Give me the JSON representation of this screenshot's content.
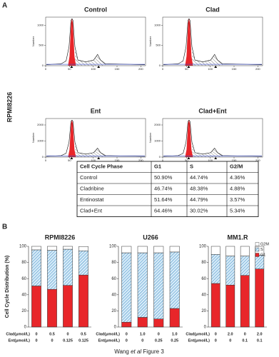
{
  "panel_a": {
    "label": "A",
    "row_label": "RPMI8226",
    "histograms": [
      {
        "title": "Control",
        "ylabel": "Number",
        "xlim": [
          0,
          210
        ],
        "ylim": [
          0,
          1200
        ],
        "xticks": [
          0,
          50,
          100,
          150,
          200
        ],
        "yticks": [
          0,
          500,
          1000
        ]
      },
      {
        "title": "Clad",
        "ylabel": "Number",
        "xlim": [
          0,
          210
        ],
        "ylim": [
          0,
          1200
        ],
        "xticks": [
          0,
          50,
          100,
          150,
          200
        ],
        "yticks": [
          0,
          500,
          1000
        ]
      },
      {
        "title": "Ent",
        "ylabel": "Number",
        "xlim": [
          0,
          210
        ],
        "ylim": [
          0,
          2400
        ],
        "xticks": [
          0,
          50,
          100,
          150,
          200
        ],
        "yticks": [
          0,
          1000,
          2000
        ]
      },
      {
        "title": "Clad+Ent",
        "ylabel": "Number",
        "xlim": [
          0,
          210
        ],
        "ylim": [
          0,
          2400
        ],
        "xticks": [
          0,
          50,
          100,
          150,
          200
        ],
        "yticks": [
          0,
          1000,
          2000
        ]
      }
    ],
    "table": {
      "header": [
        "Cell Cycle Phase",
        "G1",
        "S",
        "G2/M"
      ],
      "rows": [
        [
          "Control",
          "50.90%",
          "44.74%",
          "4.36%"
        ],
        [
          "Cladribine",
          "46.74%",
          "48.38%",
          "4.88%"
        ],
        [
          "Entinostat",
          "51.64%",
          "44.79%",
          "3.57%"
        ],
        [
          "Clad+Ent",
          "64.46%",
          "30.02%",
          "5.34%"
        ]
      ]
    }
  },
  "panel_b": {
    "label": "B"
  },
  "chart_data": [
    {
      "type": "bar",
      "stacked": true,
      "title": "RPMI8226",
      "ylabel": "Cell Cycle Distribution (%)",
      "category_rows": [
        {
          "name": "Clad(μmol/L)",
          "labels": [
            "0",
            "0.5",
            "0",
            "0.5"
          ]
        },
        {
          "name": "Ent(μmol/L)",
          "labels": [
            "0",
            "0",
            "0.125",
            "0.125"
          ]
        }
      ],
      "ylim": [
        0,
        100
      ],
      "yticks": [
        0,
        20,
        40,
        60,
        80,
        100
      ],
      "series": [
        {
          "color": "#e8262a",
          "values": [
            50.9,
            46.74,
            51.64,
            64.46
          ]
        },
        {
          "color": "#9cc8e8",
          "values": [
            44.74,
            48.38,
            44.79,
            30.02
          ]
        },
        {
          "color": "#ffffff",
          "values": [
            4.36,
            4.88,
            3.57,
            5.34
          ]
        }
      ]
    },
    {
      "type": "bar",
      "stacked": true,
      "title": "U266",
      "category_rows": [
        {
          "name": "Clad(μmol/L)",
          "labels": [
            "0",
            "1.0",
            "0",
            "1.0"
          ]
        },
        {
          "name": "Ent(μmol/L)",
          "labels": [
            "0",
            "0",
            "0.25",
            "0.25"
          ]
        }
      ],
      "ylim": [
        0,
        100
      ],
      "yticks": [
        0,
        20,
        40,
        60,
        80,
        100
      ],
      "series": [
        {
          "color": "#e8262a",
          "values": [
            6,
            12,
            10,
            23
          ]
        },
        {
          "color": "#9cc8e8",
          "values": [
            86,
            80,
            82,
            70
          ]
        },
        {
          "color": "#ffffff",
          "values": [
            8,
            8,
            8,
            7
          ]
        }
      ]
    },
    {
      "type": "bar",
      "stacked": true,
      "title": "MM1.R",
      "legend": "upper-right",
      "category_rows": [
        {
          "name": "Clad(μmol/L)",
          "labels": [
            "0",
            "2.0",
            "0",
            "2.0"
          ]
        },
        {
          "name": "Ent(μmol/L)",
          "labels": [
            "0",
            "0",
            "0.1",
            "0.1"
          ]
        }
      ],
      "ylim": [
        0,
        100
      ],
      "yticks": [
        0,
        20,
        40,
        60,
        80,
        100
      ],
      "series": [
        {
          "name": "G1",
          "color": "#e8262a",
          "values": [
            54,
            52,
            64,
            72
          ]
        },
        {
          "name": "S",
          "color": "#9cc8e8",
          "values": [
            36,
            36,
            24,
            17
          ]
        },
        {
          "name": "G2M",
          "color": "#ffffff",
          "values": [
            10,
            12,
            12,
            11
          ]
        }
      ]
    }
  ],
  "caption": {
    "author": "Wang",
    "etal": "et al",
    "figure": "Figure 3"
  }
}
